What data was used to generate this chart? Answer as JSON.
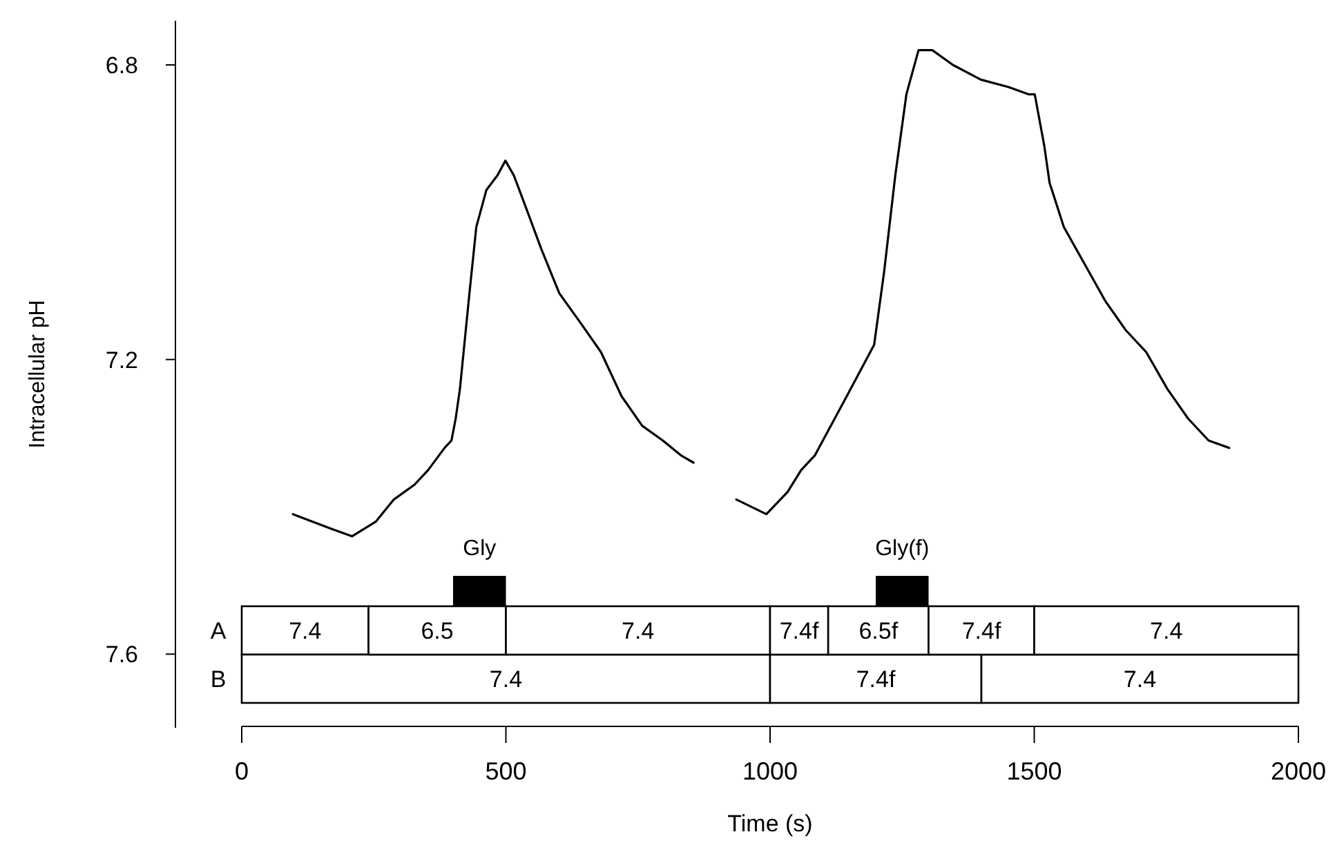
{
  "chart_data": [
    {
      "type": "line",
      "ylabel": "Intracellular pH",
      "xlim": [
        0,
        2000
      ],
      "ylim": [
        7.7,
        6.74
      ],
      "yticks": [
        6.8,
        7.2,
        7.6
      ],
      "tick_labels": "y",
      "color": "#000000",
      "x": [
        97,
        170,
        209,
        254,
        288,
        327,
        353,
        384,
        397,
        405,
        413,
        431,
        444,
        463,
        484,
        499,
        515,
        536,
        567,
        601,
        641,
        680,
        719,
        758,
        797,
        831,
        855,
        895,
        936,
        993,
        1033,
        1059,
        1085,
        1145,
        1197,
        1216,
        1237,
        1258,
        1281,
        1307,
        1346,
        1399,
        1451,
        1490,
        1501,
        1519,
        1529,
        1556,
        1595,
        1634,
        1673,
        1712,
        1752,
        1791,
        1830,
        1869
      ],
      "values": [
        7.41,
        7.43,
        7.44,
        7.42,
        7.39,
        7.37,
        7.35,
        7.32,
        7.31,
        7.28,
        7.24,
        7.11,
        7.02,
        6.97,
        6.95,
        6.93,
        6.95,
        6.99,
        7.05,
        7.11,
        7.15,
        7.19,
        7.25,
        7.29,
        7.31,
        7.33,
        7.34,
        null,
        7.39,
        7.41,
        7.38,
        7.35,
        7.33,
        7.25,
        7.18,
        7.08,
        6.95,
        6.84,
        6.78,
        6.78,
        6.8,
        6.82,
        6.83,
        6.84,
        6.84,
        6.91,
        6.96,
        7.02,
        7.07,
        7.12,
        7.16,
        7.19,
        7.24,
        7.28,
        7.31,
        7.32
      ],
      "bands": [
        {
          "axis": "x",
          "from": 400,
          "to": 500,
          "label": "Gly",
          "color": "#000000"
        },
        {
          "axis": "x",
          "from": 1200,
          "to": 1300,
          "label": "Gly(f)",
          "color": "#000000"
        }
      ]
    },
    {
      "type": "bar",
      "orientation": "horizontal",
      "stacked": true,
      "categories": [
        "A",
        "B"
      ],
      "xlim": [
        0,
        2000
      ],
      "xticks": [
        0,
        500,
        1000,
        1500,
        2000
      ],
      "xlabel": "Time (s)",
      "series": [
        {
          "color": "#ffffff",
          "values": [
            240,
            1000
          ]
        },
        {
          "color": "#ffffff",
          "values": [
            260,
            400
          ]
        },
        {
          "color": "#ffffff",
          "values": [
            500,
            600
          ]
        },
        {
          "color": "#ffffff",
          "values": [
            110,
            null
          ]
        },
        {
          "color": "#ffffff",
          "values": [
            190,
            null
          ]
        },
        {
          "color": "#ffffff",
          "values": [
            200,
            null
          ]
        },
        {
          "color": "#ffffff",
          "values": [
            500,
            null
          ]
        }
      ],
      "annotations": [
        {
          "text": "7.4",
          "x": 120,
          "y": "A"
        },
        {
          "text": "6.5",
          "x": 370,
          "y": "A"
        },
        {
          "text": "7.4",
          "x": 750,
          "y": "A"
        },
        {
          "text": "7.4f",
          "x": 1055,
          "y": "A"
        },
        {
          "text": "6.5f",
          "x": 1205,
          "y": "A"
        },
        {
          "text": "7.4f",
          "x": 1400,
          "y": "A"
        },
        {
          "text": "7.4",
          "x": 1750,
          "y": "A"
        },
        {
          "text": "7.4",
          "x": 500,
          "y": "B"
        },
        {
          "text": "7.4f",
          "x": 1200,
          "y": "B"
        },
        {
          "text": "7.4",
          "x": 1700,
          "y": "B"
        }
      ]
    }
  ]
}
